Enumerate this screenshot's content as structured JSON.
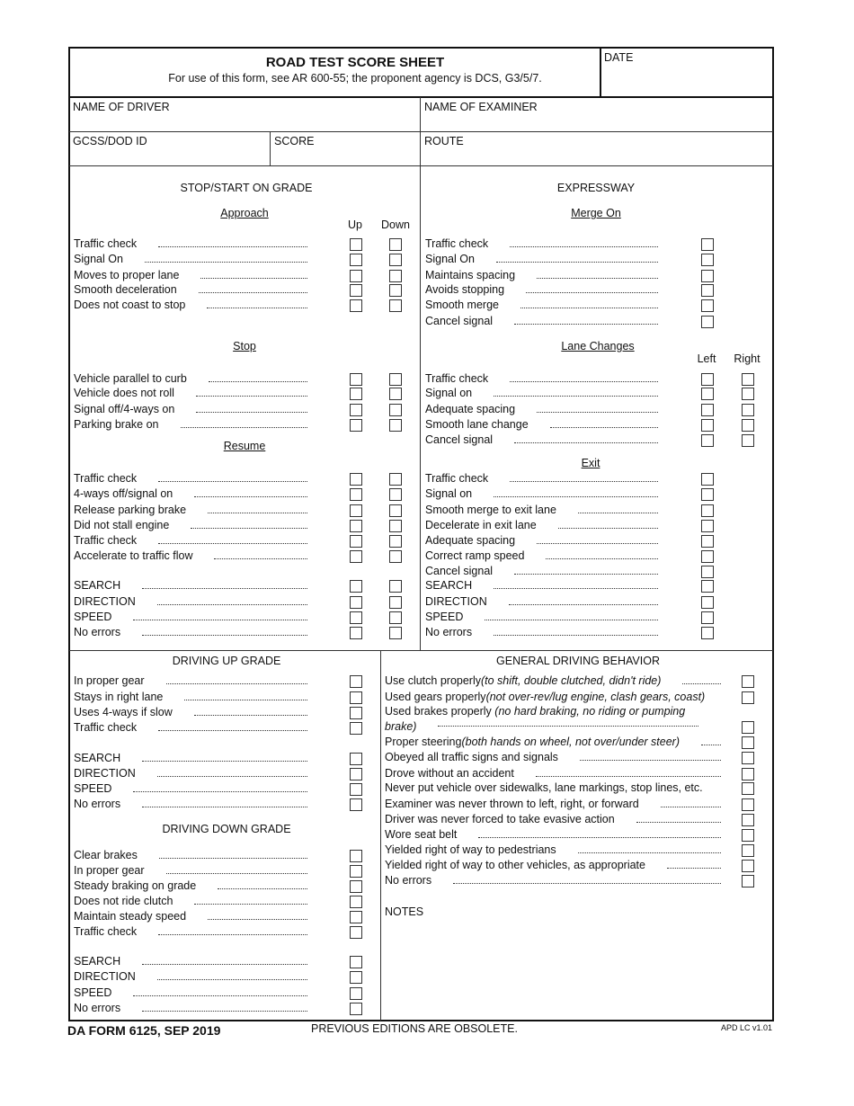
{
  "header": {
    "title": "ROAD TEST SCORE SHEET",
    "subtitle": "For use of this form, see AR 600-55; the proponent agency is DCS, G3/5/7.",
    "date_label": "DATE"
  },
  "fields": {
    "driver": "NAME OF DRIVER",
    "examiner": "NAME OF EXAMINER",
    "id": "GCSS/DOD ID",
    "score": "SCORE",
    "route": "ROUTE"
  },
  "stop_start": {
    "title": "STOP/START ON GRADE",
    "columns": [
      "Up",
      "Down"
    ],
    "approach": {
      "heading": "Approach",
      "items": [
        "Traffic check",
        "Signal On",
        "Moves to proper lane",
        "Smooth deceleration",
        "Does not coast to stop"
      ]
    },
    "stop": {
      "heading": "Stop",
      "items": [
        "Vehicle parallel to curb",
        "Vehicle does not roll",
        "Signal off/4-ways on",
        "Parking brake on"
      ]
    },
    "resume": {
      "heading": "Resume",
      "items": [
        "Traffic check",
        "4-ways off/signal on",
        "Release parking brake",
        "Did not stall engine",
        "Traffic check",
        "Accelerate to traffic flow"
      ]
    },
    "summary": {
      "items": [
        "SEARCH",
        "DIRECTION",
        "SPEED",
        "No errors"
      ]
    }
  },
  "expressway": {
    "title": "EXPRESSWAY",
    "columns": [
      "Left",
      "Right"
    ],
    "merge_on": {
      "heading": "Merge On",
      "items": [
        "Traffic check",
        "Signal On",
        "Maintains spacing",
        "Avoids stopping",
        "Smooth merge",
        "Cancel signal"
      ]
    },
    "lane_changes": {
      "heading": "Lane Changes",
      "items": [
        "Traffic check",
        "Signal on",
        "Adequate spacing",
        "Smooth lane change",
        "Cancel signal"
      ]
    },
    "exit": {
      "heading": "Exit",
      "items": [
        "Traffic check",
        "Signal on",
        "Smooth merge to exit lane",
        "Decelerate in exit lane",
        "Adequate spacing",
        "Correct ramp speed",
        "Cancel signal",
        "SEARCH",
        "DIRECTION",
        "SPEED",
        "No errors"
      ]
    }
  },
  "up_grade": {
    "title": "DRIVING UP GRADE",
    "items": [
      "In proper gear",
      "Stays in right lane",
      "Uses 4-ways if slow",
      "Traffic check"
    ],
    "summary": [
      "SEARCH",
      "DIRECTION",
      "SPEED",
      "No errors"
    ]
  },
  "down_grade": {
    "title": "DRIVING DOWN GRADE",
    "items": [
      "Clear brakes",
      "In proper gear",
      "Steady braking on grade",
      "Does not ride clutch",
      "Maintain steady speed",
      "Traffic check"
    ],
    "summary": [
      "SEARCH",
      "DIRECTION",
      "SPEED",
      "No errors"
    ]
  },
  "general": {
    "title": "GENERAL DRIVING BEHAVIOR",
    "items": [
      {
        "text": "Use clutch properly ",
        "note": "(to shift, double clutched, didn't ride)"
      },
      {
        "text": "Used gears properly ",
        "note": "(not over-rev/lug engine, clash gears, coast)"
      },
      {
        "text": "Used brakes properly ",
        "note": "(no hard braking, no riding or pumping brake)"
      },
      {
        "text": "Proper steering ",
        "note": "(both hands on wheel, not over/under steer)"
      },
      {
        "text": "Obeyed all traffic signs and signals",
        "note": ""
      },
      {
        "text": "Drove without an accident",
        "note": ""
      },
      {
        "text": "Never put vehicle over sidewalks, lane markings, stop lines, etc.",
        "note": ""
      },
      {
        "text": "Examiner was never thrown to left, right, or forward",
        "note": ""
      },
      {
        "text": "Driver was never forced to take evasive action",
        "note": ""
      },
      {
        "text": "Wore seat belt",
        "note": ""
      },
      {
        "text": "Yielded right of way to pedestrians",
        "note": ""
      },
      {
        "text": "Yielded right of way to other vehicles, as appropriate",
        "note": ""
      },
      {
        "text": "No errors",
        "note": ""
      }
    ],
    "notes_label": "NOTES"
  },
  "footer": {
    "form": "DA FORM 6125, SEP 2019",
    "editions": "PREVIOUS EDITIONS ARE OBSOLETE.",
    "version": "APD LC v1.01"
  }
}
